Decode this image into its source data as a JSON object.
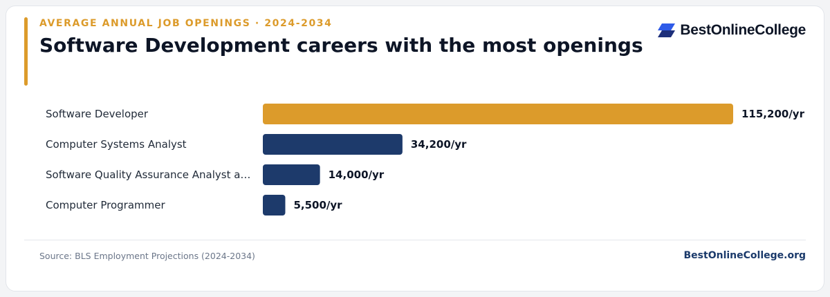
{
  "header": {
    "eyebrow": "AVERAGE ANNUAL JOB OPENINGS · 2024-2034",
    "title": "Software Development careers with the most openings"
  },
  "brand": {
    "name": "BestOnlineCollege",
    "logo_icon": "stacked-parallelogram-logo-icon"
  },
  "footer": {
    "source": "Source: BLS Employment Projections (2024-2034)",
    "site": "BestOnlineCollege.org"
  },
  "colors": {
    "accent": "#dc9b2b",
    "bar_primary": "#1d3a6b",
    "text_dark": "#0d1526",
    "logo_blue": "#2f5be8",
    "logo_navy": "#1d2f7a"
  },
  "chart_data": {
    "type": "bar",
    "orientation": "horizontal",
    "categories": [
      "Software Developer",
      "Computer Systems Analyst",
      "Software Quality Assurance Analyst a…",
      "Computer Programmer"
    ],
    "values": [
      115200,
      34200,
      14000,
      5500
    ],
    "value_labels": [
      "115,200/yr",
      "34,200/yr",
      "14,000/yr",
      "5,500/yr"
    ],
    "highlight_index": 0,
    "xlim": [
      0,
      115200
    ],
    "grid": false,
    "legend": "none"
  }
}
